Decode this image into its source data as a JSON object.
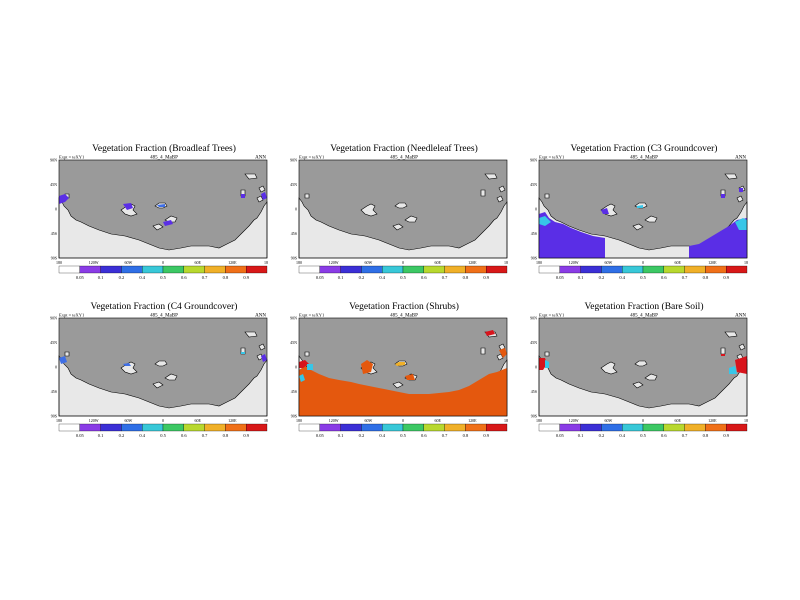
{
  "colors": {
    "ocean": "#9a9a9a",
    "land_background": "#e8e8e8",
    "coast": "#000000",
    "purple": "#5a2ee6",
    "blue": "#3f6fe6",
    "light_blue": "#37c6e8",
    "orange": "#e4580e",
    "red": "#d8141c"
  },
  "colorbar": {
    "labels": [
      "0.05",
      "0.1",
      "0.2",
      "0.4",
      "0.5",
      "0.6",
      "0.7",
      "0.8",
      "0.9"
    ],
    "colors": [
      "#ffffff",
      "#8a3ce6",
      "#3b2fd6",
      "#2f6fe6",
      "#38c8d8",
      "#3cc864",
      "#b8d82e",
      "#f0b028",
      "#f07018",
      "#d81818"
    ]
  },
  "axes": {
    "x_ticks": [
      "180",
      "120W",
      "60W",
      "0",
      "60E",
      "120E",
      "180"
    ],
    "y_ticks": [
      "90N",
      "45N",
      "0",
      "45S",
      "90S"
    ]
  },
  "chart_data": [
    {
      "type": "heatmap",
      "title": "Vegetation Fraction (Broadleaf Trees)",
      "subtitle": "485_4_MaBP",
      "expt": "Expt = teXY1",
      "period": "ANN",
      "fill": "purple_patches"
    },
    {
      "type": "heatmap",
      "title": "Vegetation Fraction (Needleleaf Trees)",
      "subtitle": "485_4_MaBP",
      "expt": "Expt = teXY1",
      "period": "",
      "fill": "none"
    },
    {
      "type": "heatmap",
      "title": "Vegetation Fraction (C3 Groundcover)",
      "subtitle": "485_4_MaBP",
      "expt": "Expt = teXY1",
      "period": "ANN",
      "fill": "c3"
    },
    {
      "type": "heatmap",
      "title": "Vegetation Fraction (C4 Groundcover)",
      "subtitle": "485_4_MaBP",
      "expt": "Expt = teXY1",
      "period": "ANN",
      "fill": "c4"
    },
    {
      "type": "heatmap",
      "title": "Vegetation Fraction (Shrubs)",
      "subtitle": "485_4_MaBP",
      "expt": "Expt = teXY1",
      "period": "",
      "fill": "shrubs"
    },
    {
      "type": "heatmap",
      "title": "Vegetation Fraction (Bare Soil)",
      "subtitle": "485_4_MaBP",
      "expt": "Expt = teXY1",
      "period": "ANN",
      "fill": "bare"
    }
  ]
}
